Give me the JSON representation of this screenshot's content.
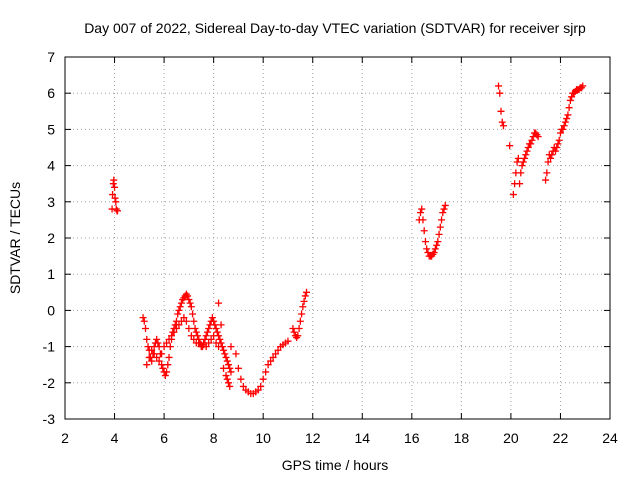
{
  "chart_data": {
    "type": "scatter",
    "title": "Day 007 of 2022, Sidereal Day-to-day VTEC variation (SDTVAR) for receiver sjrp",
    "xlabel": "GPS time / hours",
    "ylabel": "SDTVAR / TECUs",
    "xlim": [
      2,
      24
    ],
    "ylim": [
      -3,
      7
    ],
    "xticks": [
      2,
      4,
      6,
      8,
      10,
      12,
      14,
      16,
      18,
      20,
      22,
      24
    ],
    "yticks": [
      -3,
      -2,
      -1,
      0,
      1,
      2,
      3,
      4,
      5,
      6,
      7
    ],
    "grid": true,
    "marker": "+",
    "color": "#ff0000",
    "series": [
      {
        "name": "SDTVAR",
        "x": [
          3.9,
          3.92,
          3.95,
          3.97,
          4.0,
          4.02,
          4.05,
          4.07,
          4.1,
          4.12,
          5.15,
          5.2,
          5.25,
          5.3,
          5.35,
          5.4,
          5.45,
          5.5,
          5.55,
          5.6,
          5.65,
          5.7,
          5.75,
          5.8,
          5.85,
          5.9,
          5.95,
          6.0,
          6.05,
          6.1,
          6.15,
          6.2,
          6.25,
          6.3,
          6.35,
          6.4,
          6.45,
          6.5,
          6.55,
          6.6,
          6.65,
          6.7,
          6.75,
          6.8,
          6.85,
          6.9,
          6.95,
          7.0,
          7.05,
          7.1,
          7.15,
          7.2,
          7.25,
          7.3,
          7.35,
          7.4,
          7.45,
          7.5,
          7.55,
          7.6,
          7.65,
          7.7,
          7.75,
          7.8,
          7.85,
          7.9,
          7.95,
          8.0,
          8.05,
          8.1,
          8.15,
          8.2,
          8.25,
          8.3,
          8.35,
          8.4,
          8.45,
          8.5,
          8.55,
          8.6,
          8.65,
          8.7,
          5.3,
          5.4,
          5.5,
          5.6,
          5.7,
          5.8,
          5.9,
          6.0,
          6.1,
          6.2,
          6.3,
          6.4,
          6.5,
          6.6,
          6.7,
          6.8,
          6.9,
          7.0,
          7.1,
          7.2,
          7.3,
          7.4,
          7.5,
          7.6,
          7.7,
          7.8,
          7.9,
          8.0,
          8.1,
          8.2,
          8.2,
          8.3,
          8.4,
          8.5,
          8.55,
          8.6,
          8.65,
          8.7,
          8.9,
          9.0,
          9.1,
          9.2,
          9.3,
          9.4,
          9.5,
          9.6,
          9.7,
          9.8,
          9.9,
          10.0,
          10.1,
          10.2,
          10.3,
          10.4,
          10.5,
          10.6,
          10.7,
          10.8,
          10.9,
          11.0,
          11.2,
          11.25,
          11.3,
          11.35,
          11.4,
          11.45,
          11.5,
          11.55,
          11.6,
          11.65,
          11.7,
          11.75,
          16.3,
          16.35,
          16.4,
          16.45,
          16.5,
          16.55,
          16.6,
          16.65,
          16.7,
          16.75,
          16.8,
          16.85,
          16.9,
          16.95,
          17.0,
          17.05,
          17.1,
          17.15,
          17.2,
          17.25,
          17.3,
          17.35,
          19.5,
          19.55,
          19.6,
          19.65,
          19.7,
          19.95,
          20.1,
          20.15,
          20.2,
          20.25,
          20.3,
          20.35,
          20.4,
          20.45,
          20.5,
          20.55,
          20.6,
          20.65,
          20.7,
          20.75,
          20.8,
          20.85,
          20.9,
          20.95,
          21.0,
          21.05,
          21.1,
          21.4,
          21.45,
          21.5,
          21.55,
          21.6,
          21.65,
          21.7,
          21.75,
          21.8,
          21.85,
          21.9,
          21.95,
          22.0,
          22.05,
          22.1,
          22.15,
          22.2,
          22.25,
          22.3,
          22.35,
          22.4,
          22.45,
          22.5,
          22.55,
          22.6,
          22.65,
          22.7,
          22.75,
          22.8,
          22.85,
          22.9
        ],
        "y": [
          2.8,
          3.2,
          3.5,
          3.6,
          3.4,
          3.1,
          3.0,
          2.8,
          2.75,
          2.75,
          -0.2,
          -0.3,
          -0.5,
          -0.8,
          -1.0,
          -1.1,
          -1.3,
          -1.4,
          -1.2,
          -1.0,
          -0.9,
          -0.8,
          -0.9,
          -1.0,
          -1.2,
          -1.5,
          -1.6,
          -1.7,
          -1.8,
          -1.7,
          -1.5,
          -1.3,
          -1.0,
          -0.8,
          -0.6,
          -0.5,
          -0.4,
          -0.3,
          -0.1,
          0.0,
          0.1,
          0.2,
          0.3,
          0.35,
          0.4,
          0.45,
          0.4,
          0.3,
          0.2,
          0.1,
          -0.1,
          -0.3,
          -0.5,
          -0.6,
          -0.7,
          -0.8,
          -0.9,
          -0.95,
          -1.0,
          -0.9,
          -0.8,
          -0.7,
          -0.6,
          -0.5,
          -0.4,
          -0.3,
          -0.2,
          -0.3,
          -0.4,
          -0.5,
          -0.6,
          -0.7,
          -0.8,
          -0.9,
          -1.0,
          -1.1,
          -1.2,
          -1.3,
          -1.4,
          -1.5,
          -1.6,
          -1.7,
          -1.5,
          -1.3,
          -1.1,
          -1.2,
          -1.3,
          -1.4,
          -1.2,
          -1.0,
          -0.9,
          -0.8,
          -0.7,
          -0.6,
          -0.5,
          -0.4,
          -0.3,
          -0.2,
          -0.3,
          -0.5,
          -0.7,
          -0.8,
          -0.9,
          -0.9,
          -1.0,
          -0.95,
          -1.0,
          -0.9,
          -0.8,
          -0.7,
          -0.9,
          -1.0,
          0.2,
          -0.4,
          -1.6,
          -1.8,
          -1.9,
          -2.0,
          -2.1,
          -1.0,
          -1.2,
          -1.6,
          -1.9,
          -2.1,
          -2.2,
          -2.25,
          -2.3,
          -2.3,
          -2.25,
          -2.2,
          -2.1,
          -1.9,
          -1.7,
          -1.5,
          -1.4,
          -1.3,
          -1.2,
          -1.1,
          -1.0,
          -0.95,
          -0.9,
          -0.85,
          -0.5,
          -0.6,
          -0.7,
          -0.75,
          -0.7,
          -0.5,
          -0.3,
          -0.1,
          0.1,
          0.25,
          0.4,
          0.5,
          2.5,
          2.7,
          2.8,
          2.5,
          2.2,
          1.9,
          1.7,
          1.6,
          1.5,
          1.5,
          1.5,
          1.55,
          1.6,
          1.7,
          1.8,
          1.9,
          2.1,
          2.3,
          2.5,
          2.7,
          2.8,
          2.9,
          6.2,
          6.0,
          5.5,
          5.2,
          5.1,
          4.55,
          3.2,
          3.5,
          3.8,
          4.1,
          4.2,
          3.5,
          3.8,
          4.0,
          4.1,
          4.2,
          4.3,
          4.4,
          4.5,
          4.6,
          4.6,
          4.7,
          4.8,
          4.9,
          4.9,
          4.85,
          4.8,
          3.6,
          3.8,
          4.1,
          4.3,
          4.2,
          4.3,
          4.4,
          4.5,
          4.4,
          4.5,
          4.6,
          4.7,
          4.9,
          5.0,
          5.0,
          5.1,
          5.2,
          5.3,
          5.4,
          5.6,
          5.8,
          5.9,
          6.0,
          6.0,
          6.05,
          6.1,
          6.1,
          6.1,
          6.15,
          6.15,
          6.2
        ]
      }
    ]
  }
}
